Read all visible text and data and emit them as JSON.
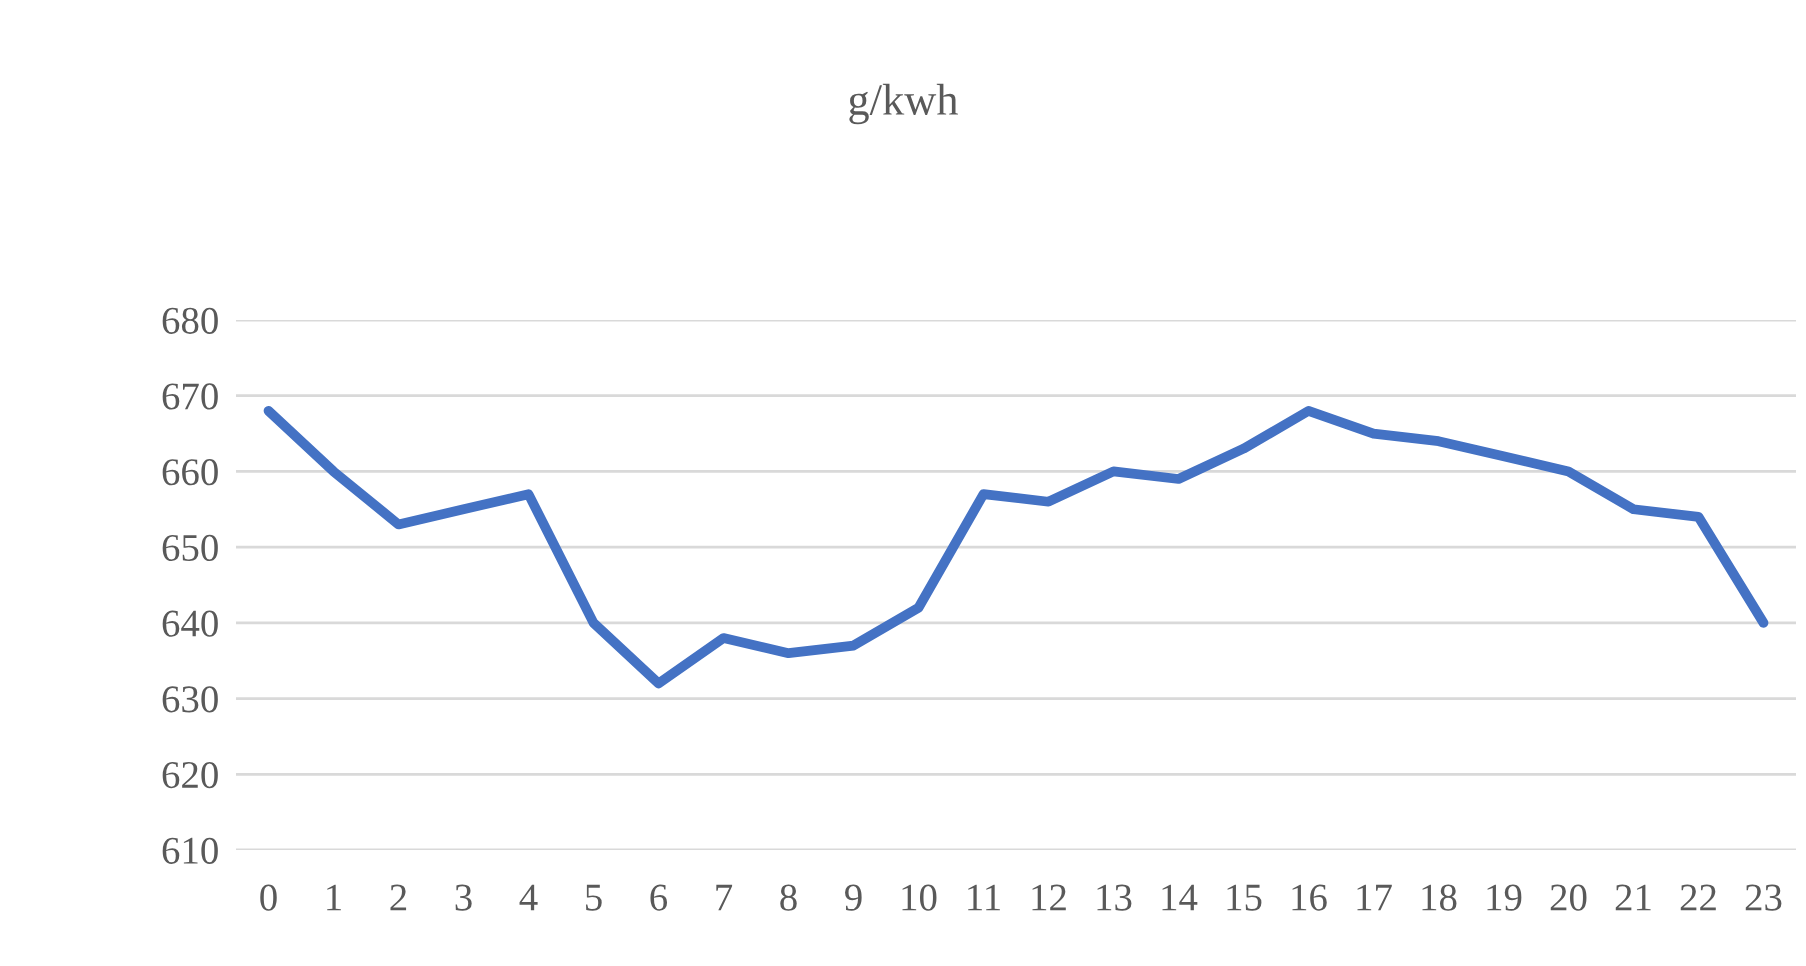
{
  "chart_data": {
    "type": "line",
    "title": "g/kwh",
    "categories": [
      "0",
      "1",
      "2",
      "3",
      "4",
      "5",
      "6",
      "7",
      "8",
      "9",
      "10",
      "11",
      "12",
      "13",
      "14",
      "15",
      "16",
      "17",
      "18",
      "19",
      "20",
      "21",
      "22",
      "23"
    ],
    "series": [
      {
        "color": "#4472c4",
        "values": [
          668,
          660,
          653,
          655,
          657,
          640,
          632,
          638,
          636,
          637,
          642,
          657,
          656,
          660,
          659,
          663,
          668,
          665,
          664,
          662,
          660,
          655,
          654,
          640
        ]
      }
    ],
    "ylim": [
      610,
      680
    ],
    "yticks": [
      610,
      620,
      630,
      640,
      650,
      660,
      670,
      680
    ],
    "grid": "y",
    "marker": "none",
    "line_style": "solid"
  }
}
